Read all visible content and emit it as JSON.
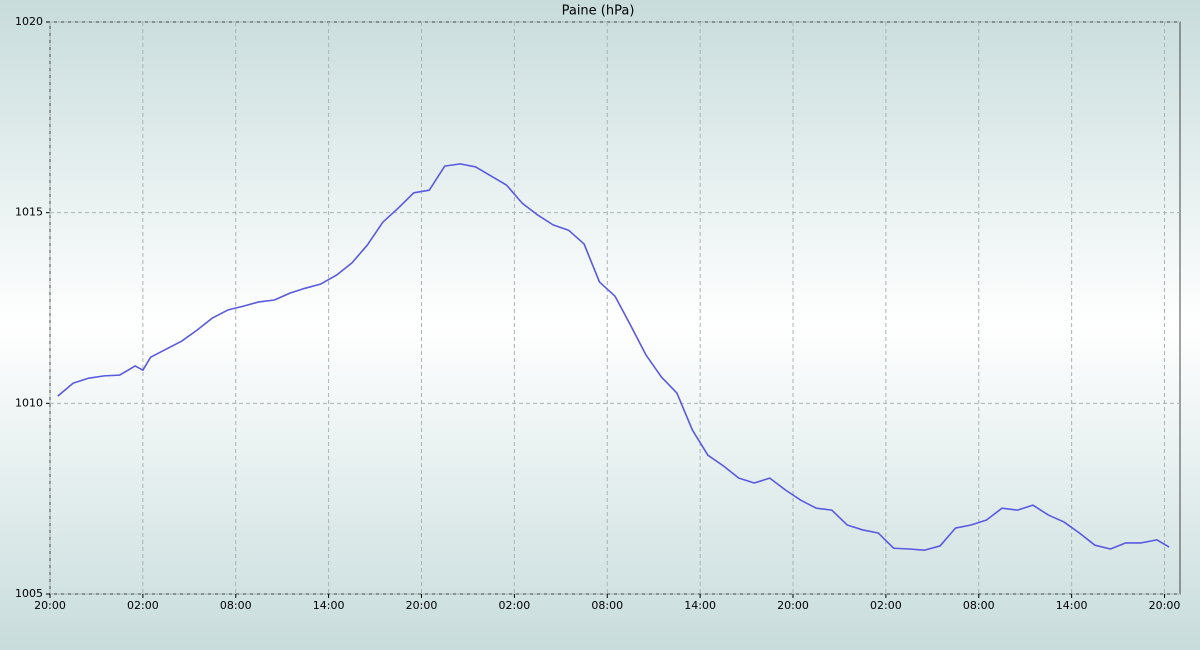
{
  "chart_data": {
    "type": "line",
    "title": "Paine (hPa)",
    "x": [
      0.5,
      1.5,
      2.5,
      3.5,
      4.5,
      5.5,
      6,
      6.5,
      7.5,
      8.5,
      9.5,
      10.5,
      11.5,
      12.5,
      13.5,
      14.5,
      15.5,
      16.5,
      17.5,
      18.5,
      19.5,
      20.5,
      21.5,
      22.5,
      23.5,
      24.5,
      25.5,
      26.5,
      27.5,
      28.5,
      29.5,
      30.5,
      31.5,
      32.5,
      33.5,
      34.5,
      35.5,
      36.5,
      37.5,
      38.5,
      39.5,
      40.5,
      41.5,
      42.5,
      43.5,
      44.5,
      45.5,
      46.5,
      47.5,
      48.5,
      49.5,
      50.5,
      51.5,
      52.5,
      53.5,
      54.5,
      55.5,
      56.5,
      57.5,
      58.5,
      59.5,
      60.5,
      61.5,
      62.5,
      63.5,
      64.5,
      65.5,
      66.5,
      67.5,
      68.5,
      69.5,
      70.5,
      71.5,
      72.3
    ],
    "values": [
      1010.19,
      1010.53,
      1010.66,
      1010.72,
      1010.74,
      1010.98,
      1010.87,
      1011.21,
      1011.42,
      1011.63,
      1011.92,
      1012.24,
      1012.45,
      1012.55,
      1012.66,
      1012.71,
      1012.89,
      1013.02,
      1013.13,
      1013.36,
      1013.68,
      1014.15,
      1014.75,
      1015.12,
      1015.52,
      1015.59,
      1016.22,
      1016.28,
      1016.2,
      1015.96,
      1015.72,
      1015.25,
      1014.94,
      1014.68,
      1014.54,
      1014.18,
      1013.18,
      1012.81,
      1012.05,
      1011.27,
      1010.69,
      1010.27,
      1009.3,
      1008.64,
      1008.36,
      1008.04,
      1007.91,
      1008.04,
      1007.73,
      1007.46,
      1007.25,
      1007.2,
      1006.81,
      1006.68,
      1006.6,
      1006.2,
      1006.18,
      1006.15,
      1006.26,
      1006.73,
      1006.81,
      1006.94,
      1007.25,
      1007.2,
      1007.33,
      1007.07,
      1006.89,
      1006.6,
      1006.28,
      1006.18,
      1006.34,
      1006.34,
      1006.42,
      1006.23
    ],
    "color": "#5a5ae0",
    "xlim": [
      0,
      73
    ],
    "xticks": [
      {
        "value": 0,
        "label": "20:00"
      },
      {
        "value": 6,
        "label": "02:00"
      },
      {
        "value": 12,
        "label": "08:00"
      },
      {
        "value": 18,
        "label": "14:00"
      },
      {
        "value": 24,
        "label": "20:00"
      },
      {
        "value": 30,
        "label": "02:00"
      },
      {
        "value": 36,
        "label": "08:00"
      },
      {
        "value": 42,
        "label": "14:00"
      },
      {
        "value": 48,
        "label": "20:00"
      },
      {
        "value": 54,
        "label": "02:00"
      },
      {
        "value": 60,
        "label": "08:00"
      },
      {
        "value": 66,
        "label": "14:00"
      },
      {
        "value": 72,
        "label": "20:00"
      }
    ],
    "ylim": [
      1005,
      1020
    ],
    "yticks": [
      1005,
      1010,
      1015,
      1020
    ],
    "grid": true
  }
}
